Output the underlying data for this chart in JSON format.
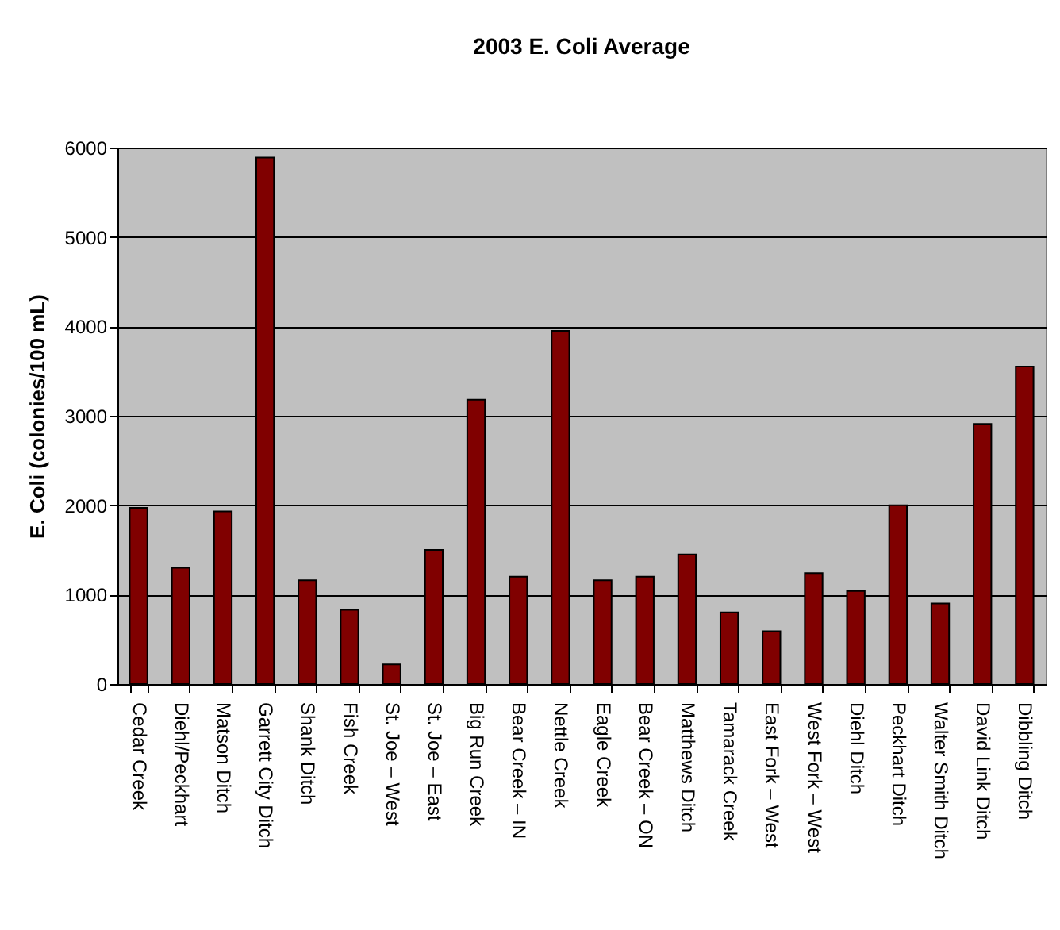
{
  "chart_data": {
    "type": "bar",
    "title": "2003 E. Coli Average",
    "ylabel": "E. Coli (colonies/100 mL)",
    "categories": [
      "Cedar Creek",
      "Diehl/Peckhart",
      "Matson Ditch",
      "Garrett City Ditch",
      "Shank Ditch",
      "Fish Creek",
      "St. Joe – West",
      "St. Joe – East",
      "Big Run Creek",
      "Bear Creek – IN",
      "Nettle Creek",
      "Eagle Creek",
      "Bear Creek – ON",
      "Matthews Ditch",
      "Tamarack Creek",
      "East Fork – West",
      "West Fork – West",
      "Diehl Ditch",
      "Peckhart Ditch",
      "Walter Smith Ditch",
      "David Link Ditch",
      "Dibbling Ditch"
    ],
    "values": [
      1970,
      1300,
      1930,
      5890,
      1160,
      830,
      220,
      1500,
      3180,
      1200,
      3950,
      1160,
      1200,
      1450,
      800,
      590,
      1240,
      1040,
      2000,
      900,
      2910,
      3550
    ],
    "color": "#800000",
    "ylim": [
      0,
      6000
    ],
    "yticks": [
      0,
      1000,
      2000,
      3000,
      4000,
      5000,
      6000
    ],
    "grid": "y"
  }
}
